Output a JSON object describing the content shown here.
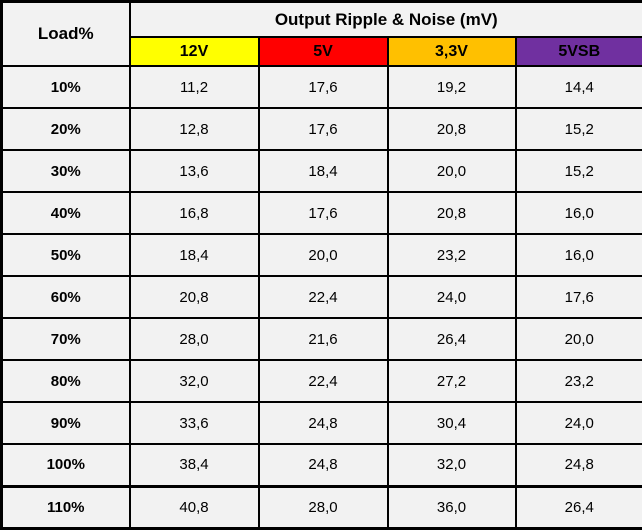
{
  "chart_data": {
    "type": "table",
    "title": "Output Ripple & Noise (mV)",
    "row_header_label": "Load%",
    "columns": [
      {
        "label": "12V",
        "color": "#FFFF00"
      },
      {
        "label": "5V",
        "color": "#FF0000"
      },
      {
        "label": "3,3V",
        "color": "#FFC000"
      },
      {
        "label": "5VSB",
        "color": "#7030A0"
      }
    ],
    "rows": [
      {
        "load": "10%",
        "values": [
          "11,2",
          "17,6",
          "19,2",
          "14,4"
        ]
      },
      {
        "load": "20%",
        "values": [
          "12,8",
          "17,6",
          "20,8",
          "15,2"
        ]
      },
      {
        "load": "30%",
        "values": [
          "13,6",
          "18,4",
          "20,0",
          "15,2"
        ]
      },
      {
        "load": "40%",
        "values": [
          "16,8",
          "17,6",
          "20,8",
          "16,0"
        ]
      },
      {
        "load": "50%",
        "values": [
          "18,4",
          "20,0",
          "23,2",
          "16,0"
        ]
      },
      {
        "load": "60%",
        "values": [
          "20,8",
          "22,4",
          "24,0",
          "17,6"
        ]
      },
      {
        "load": "70%",
        "values": [
          "28,0",
          "21,6",
          "26,4",
          "20,0"
        ]
      },
      {
        "load": "80%",
        "values": [
          "32,0",
          "22,4",
          "27,2",
          "23,2"
        ]
      },
      {
        "load": "90%",
        "values": [
          "33,6",
          "24,8",
          "30,4",
          "24,0"
        ]
      },
      {
        "load": "100%",
        "values": [
          "38,4",
          "24,8",
          "32,0",
          "24,8"
        ]
      },
      {
        "load": "110%",
        "values": [
          "40,8",
          "28,0",
          "36,0",
          "26,4"
        ]
      }
    ],
    "overload_row_index": 10,
    "styles": {
      "cell_background": "#F2F2F2",
      "border_color": "#000000",
      "text_color": "#000000"
    }
  }
}
